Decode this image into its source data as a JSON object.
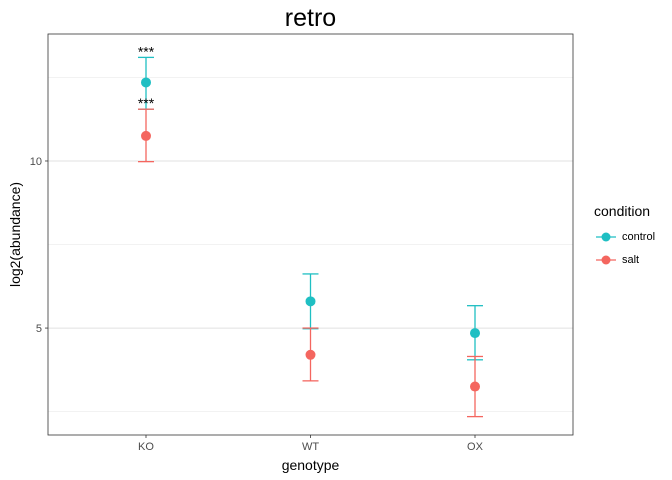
{
  "chart_data": {
    "type": "scatter",
    "title": "retro",
    "xlabel": "genotype",
    "ylabel": "log2(abundance)",
    "categories": [
      "KO",
      "WT",
      "OX"
    ],
    "ylim": [
      1.8,
      13.8
    ],
    "yticks": [
      5,
      10
    ],
    "grid": true,
    "legend": {
      "title": "condition",
      "position": "right"
    },
    "series": [
      {
        "name": "control",
        "color": "#1fbfc3",
        "values": [
          12.35,
          5.8,
          4.85
        ],
        "lower": [
          11.55,
          4.98,
          4.05
        ],
        "upper": [
          13.1,
          6.62,
          5.67
        ]
      },
      {
        "name": "salt",
        "color": "#f4665f",
        "values": [
          10.75,
          4.2,
          3.25
        ],
        "lower": [
          9.98,
          3.42,
          2.35
        ],
        "upper": [
          11.55,
          5.0,
          4.15
        ]
      }
    ],
    "annotations": [
      {
        "category": "KO",
        "y": 13.1,
        "text": "***"
      },
      {
        "category": "KO",
        "y": 11.55,
        "text": "***"
      }
    ]
  }
}
